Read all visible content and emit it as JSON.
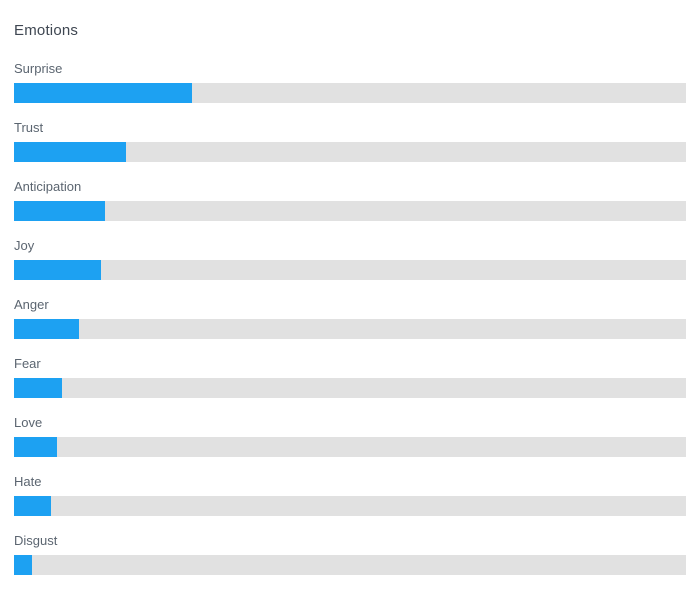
{
  "chart_data": {
    "type": "bar",
    "orientation": "horizontal",
    "title": "Emotions",
    "categories": [
      "Surprise",
      "Trust",
      "Anticipation",
      "Joy",
      "Anger",
      "Fear",
      "Love",
      "Hate",
      "Disgust"
    ],
    "values": [
      26.5,
      16.7,
      13.5,
      13.0,
      9.7,
      7.1,
      6.4,
      5.5,
      2.7
    ],
    "value_unit": "percent",
    "xlim": [
      0,
      100
    ],
    "grid": false,
    "legend": false,
    "bar_color": "#1da1f2",
    "track_color": "#e1e1e1"
  }
}
